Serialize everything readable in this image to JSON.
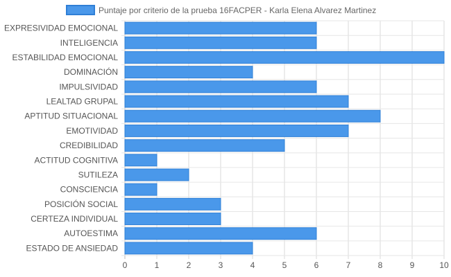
{
  "chart_data": {
    "type": "bar",
    "orientation": "horizontal",
    "categories": [
      "EXPRESIVIDAD EMOCIONAL",
      "INTELIGENCIA",
      "ESTABILIDAD EMOCIONAL",
      "DOMINACIÓN",
      "IMPULSIVIDAD",
      "LEALTAD GRUPAL",
      "APTITUD SITUACIONAL",
      "EMOTIVIDAD",
      "CREDIBILIDAD",
      "ACTITUD COGNITIVA",
      "SUTILEZA",
      "CONSCIENCIA",
      "POSICIÓN SOCIAL",
      "CERTEZA INDIVIDUAL",
      "AUTOESTIMA",
      "ESTADO DE ANSIEDAD"
    ],
    "series": [
      {
        "name": "Puntaje por criterio de la prueba 16FACPER - Karla Elena Alvarez Martinez",
        "values": [
          6,
          6,
          10,
          4,
          6,
          7,
          8,
          7,
          5,
          1,
          2,
          1,
          3,
          3,
          6,
          4
        ],
        "color": "#4a98ea",
        "border_color": "#2f7fd6"
      }
    ],
    "xlim": [
      0,
      10
    ],
    "xticks": [
      "0",
      "1",
      "2",
      "3",
      "4",
      "5",
      "6",
      "7",
      "8",
      "9",
      "10"
    ],
    "grid": true,
    "legend_position": "top"
  }
}
